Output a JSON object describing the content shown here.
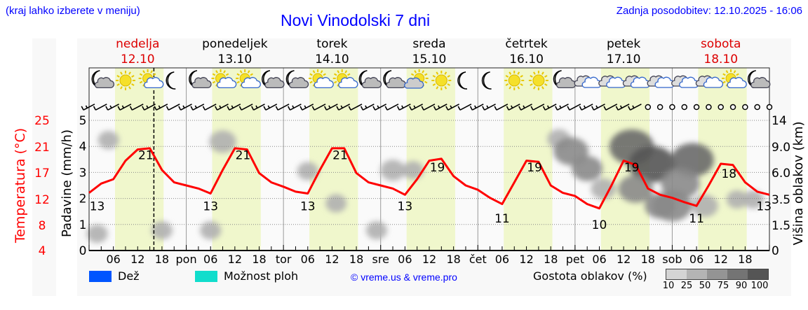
{
  "header": {
    "hint": "(kraj lahko izberete v meniju)",
    "title": "Novi Vinodolski 7 dni",
    "updated": "Zadnja posodobitev: 12.10.2025 - 16:06"
  },
  "legend": {
    "rain_label": "Dež",
    "showers_label": "Možnost ploh",
    "copyright": "© vreme.us & vreme.pro",
    "cloud_density_label": "Gostota oblakov (%)",
    "density_levels": [
      "10",
      "25",
      "50",
      "75",
      "90",
      "100"
    ],
    "colors": {
      "rain": "#0055ff",
      "showers": "#11ddcc",
      "temp": "#ff0000",
      "day_band": "#f0f7cc",
      "density": [
        "#d4d4d4",
        "#b4b4b4",
        "#949494",
        "#747474",
        "#555555"
      ]
    }
  },
  "chart_data": {
    "type": "line",
    "title": "Novi Vinodolski 7 dni",
    "days": [
      {
        "name": "nedelja",
        "date": "12.10",
        "weekend": true,
        "abbr": ""
      },
      {
        "name": "ponedeljek",
        "date": "13.10",
        "weekend": false,
        "abbr": "pon"
      },
      {
        "name": "torek",
        "date": "14.10",
        "weekend": false,
        "abbr": "tor"
      },
      {
        "name": "sreda",
        "date": "15.10",
        "weekend": false,
        "abbr": "sre"
      },
      {
        "name": "četrtek",
        "date": "16.10",
        "weekend": false,
        "abbr": "čet"
      },
      {
        "name": "petek",
        "date": "17.10",
        "weekend": false,
        "abbr": "pet"
      },
      {
        "name": "sobota",
        "date": "18.10",
        "weekend": true,
        "abbr": "sob"
      }
    ],
    "hour_ticks": [
      "06",
      "12",
      "18"
    ],
    "now_hour": 16,
    "ylabel_left_temp": "Temperatura (°C)",
    "temp_ticks": [
      "25",
      "21",
      "17",
      "12",
      "8",
      "4"
    ],
    "temp_range": [
      4,
      25
    ],
    "ylabel_precip": "Padavine (mm/h)",
    "precip_ticks": [
      "5",
      "4",
      "3",
      "2",
      "1",
      "0"
    ],
    "precip_range": [
      0,
      5
    ],
    "ylabel_right": "Višina oblakov (km)",
    "cloud_height_ticks": [
      "14",
      "9.0",
      "6.0",
      "3.5",
      "1.5",
      "0"
    ],
    "temperature_3h": [
      13.3,
      14.8,
      15.5,
      18.5,
      20.3,
      20.5,
      17,
      15,
      14.5,
      14,
      13.2,
      17,
      20.5,
      20.3,
      16.5,
      15,
      14.3,
      13.5,
      13.2,
      17,
      20.5,
      20.5,
      16.5,
      15,
      14.5,
      14,
      13,
      15.5,
      18.5,
      18.8,
      16,
      14.5,
      13.8,
      12.5,
      11.5,
      15,
      18.5,
      18.3,
      14.5,
      13.3,
      12.8,
      11.5,
      10.8,
      14.5,
      18.5,
      17.8,
      14,
      13,
      12.5,
      11.8,
      11.2,
      14.5,
      18,
      17.8,
      15,
      13.5,
      13
    ],
    "temp_labels": [
      {
        "h": 2,
        "t": 13,
        "text": "13"
      },
      {
        "h": 14,
        "t": 21,
        "text": "21"
      },
      {
        "h": 30,
        "t": 13,
        "text": "13"
      },
      {
        "h": 38,
        "t": 21,
        "text": "21"
      },
      {
        "h": 54,
        "t": 13,
        "text": "13"
      },
      {
        "h": 62,
        "t": 21,
        "text": "21"
      },
      {
        "h": 78,
        "t": 13,
        "text": "13"
      },
      {
        "h": 86,
        "t": 19,
        "text": "19"
      },
      {
        "h": 102,
        "t": 11,
        "text": "11"
      },
      {
        "h": 110,
        "t": 19,
        "text": "19"
      },
      {
        "h": 126,
        "t": 10,
        "text": "10"
      },
      {
        "h": 134,
        "t": 19,
        "text": "19"
      },
      {
        "h": 150,
        "t": 11,
        "text": "11"
      },
      {
        "h": 158,
        "t": 18,
        "text": "18"
      },
      {
        "h": 167,
        "t": 13,
        "text": "13"
      }
    ],
    "precipitation": [],
    "weather_icons": [
      "moon-cloud",
      "sun",
      "sun-cloud",
      "moon",
      "moon-cloud",
      "sun-cloud",
      "sun-cloud",
      "moon-cloud",
      "moon-cloud",
      "sun-cloud",
      "sun-cloud",
      "moon-cloud",
      "moon-cloud",
      "cloud-sun",
      "sun",
      "moon",
      "moon",
      "sun",
      "sun",
      "moon-cloud",
      "cloudy",
      "cloudy",
      "cloudy",
      "cloudy",
      "cloudy",
      "cloudy",
      "sun-cloud",
      "moon-cloud"
    ],
    "wind_calm_from_index": 46,
    "cloud_blobs": [
      {
        "h": 4.8,
        "km": 10.3,
        "d": 25
      },
      {
        "h": 2,
        "km": 1.0,
        "d": 25
      },
      {
        "h": 18,
        "km": 1.2,
        "d": 25
      },
      {
        "h": 33,
        "km": 10,
        "d": 40
      },
      {
        "h": 30,
        "km": 1.2,
        "d": 25
      },
      {
        "h": 54,
        "km": 6.2,
        "d": 25
      },
      {
        "h": 61,
        "km": 3.2,
        "d": 25
      },
      {
        "h": 75,
        "km": 6.3,
        "d": 35
      },
      {
        "h": 80,
        "km": 6.3,
        "d": 25
      },
      {
        "h": 71,
        "km": 1.2,
        "d": 25
      },
      {
        "h": 116,
        "km": 10.5,
        "d": 30
      },
      {
        "h": 119,
        "km": 8.5,
        "d": 60
      },
      {
        "h": 123,
        "km": 6.5,
        "d": 50
      },
      {
        "h": 127,
        "km": 4.5,
        "d": 35
      },
      {
        "h": 134,
        "km": 9,
        "d": 85
      },
      {
        "h": 139,
        "km": 7,
        "d": 90
      },
      {
        "h": 135,
        "km": 4.5,
        "d": 60
      },
      {
        "h": 144,
        "km": 3,
        "d": 70
      },
      {
        "h": 149,
        "km": 7.5,
        "d": 80
      },
      {
        "h": 146,
        "km": 5,
        "d": 70
      },
      {
        "h": 141,
        "km": 3,
        "d": 50
      },
      {
        "h": 152,
        "km": 3,
        "d": 40
      },
      {
        "h": 160,
        "km": 3.5,
        "d": 25
      },
      {
        "h": 164,
        "km": 3.5,
        "d": 25
      }
    ]
  }
}
